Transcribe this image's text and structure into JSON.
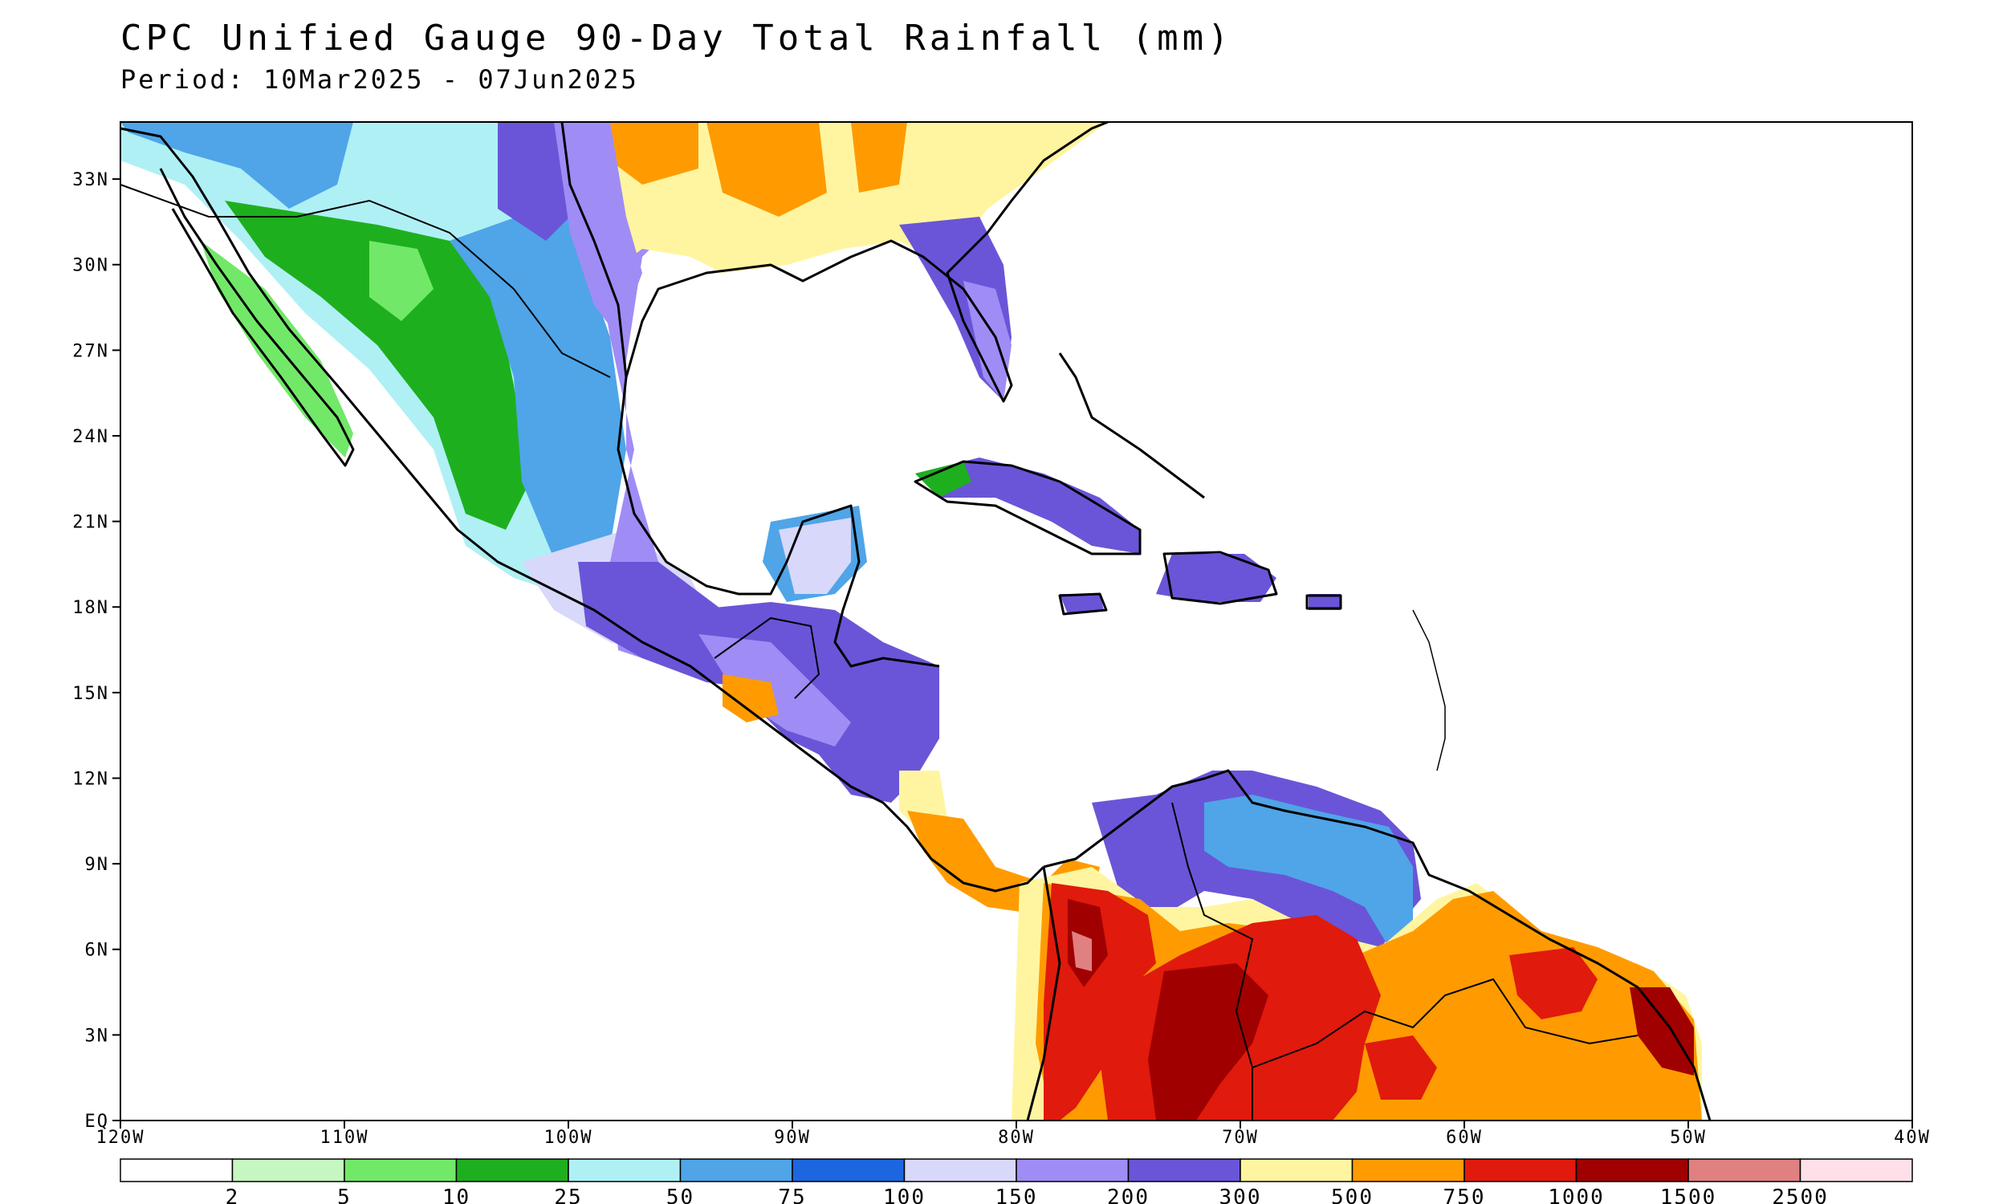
{
  "title": "CPC Unified Gauge 90-Day Total Rainfall (mm)",
  "subtitle": "Period: 10Mar2025 - 07Jun2025",
  "map": {
    "lon_range": [
      -120,
      -40
    ],
    "lat_range": [
      0,
      35
    ],
    "lat_ticks": [
      {
        "value": 33,
        "label": "33N"
      },
      {
        "value": 30,
        "label": "30N"
      },
      {
        "value": 27,
        "label": "27N"
      },
      {
        "value": 24,
        "label": "24N"
      },
      {
        "value": 21,
        "label": "21N"
      },
      {
        "value": 18,
        "label": "18N"
      },
      {
        "value": 15,
        "label": "15N"
      },
      {
        "value": 12,
        "label": "12N"
      },
      {
        "value": 9,
        "label": "9N"
      },
      {
        "value": 6,
        "label": "6N"
      },
      {
        "value": 3,
        "label": "3N"
      },
      {
        "value": 0,
        "label": "EQ"
      }
    ],
    "lon_ticks": [
      {
        "value": -120,
        "label": "120W"
      },
      {
        "value": -110,
        "label": "110W"
      },
      {
        "value": -100,
        "label": "100W"
      },
      {
        "value": -90,
        "label": "90W"
      },
      {
        "value": -80,
        "label": "80W"
      },
      {
        "value": -70,
        "label": "70W"
      },
      {
        "value": -60,
        "label": "60W"
      },
      {
        "value": -50,
        "label": "50W"
      },
      {
        "value": -40,
        "label": "40W"
      }
    ]
  },
  "legend": {
    "colors": [
      "#ffffff",
      "#c6f7c0",
      "#72e868",
      "#1eaf1e",
      "#aff0f5",
      "#4fa5e8",
      "#1c66e0",
      "#d8d8fa",
      "#a08cf5",
      "#6a55d8",
      "#fff5a0",
      "#ff9b00",
      "#e01a0c",
      "#a00000",
      "#e08080",
      "#ffe0e8"
    ],
    "labels": [
      "2",
      "5",
      "10",
      "25",
      "50",
      "75",
      "100",
      "150",
      "200",
      "300",
      "500",
      "750",
      "1000",
      "1500",
      "2500"
    ]
  }
}
